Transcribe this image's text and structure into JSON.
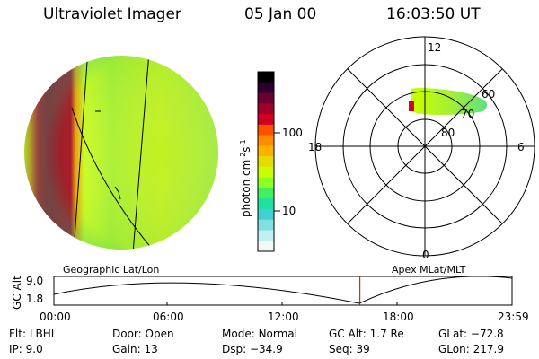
{
  "header": {
    "instrument": "Ultraviolet Imager",
    "date": "05 Jan 00",
    "time": "16:03:50 UT"
  },
  "colorbar": {
    "unit_prefix": "photon cm",
    "unit_exp1": "-2",
    "unit_mid": "s",
    "unit_exp2": "-1",
    "tick_100": "100",
    "tick_10": "10",
    "colors": [
      "#000000",
      "#2a0030",
      "#6a0030",
      "#a0002a",
      "#d00020",
      "#ff5000",
      "#ff8c00",
      "#ffb000",
      "#e6dc00",
      "#c8ff00",
      "#8cff20",
      "#40f060",
      "#20e0a0",
      "#40d0d0",
      "#80e0e0",
      "#c0f0f0",
      "#f0f8f8"
    ]
  },
  "polar": {
    "mlt_12": "12",
    "mlt_18": "18",
    "mlt_6": "6",
    "mlt_0": "0",
    "lat_60": "60",
    "lat_70": "70",
    "lat_80": "80"
  },
  "labels": {
    "left_title": "Geographic Lat/Lon",
    "right_title": "Apex MLat/MLT"
  },
  "timeline": {
    "axis_label": "GC Alt",
    "y_top": "9.0",
    "y_bottom": "1.8",
    "ticks": [
      "00:00",
      "06:00",
      "12:00",
      "18:00",
      "23:59"
    ],
    "current_time_fraction": 0.668
  },
  "status": {
    "flt_label": "Flt:",
    "flt_value": "LBHL",
    "ip_label": "IP:",
    "ip_value": "9.0",
    "door_label": "Door:",
    "door_value": "Open",
    "gain_label": "Gain:",
    "gain_value": "13",
    "mode_label": "Mode:",
    "mode_value": "Normal",
    "dsp_label": "Dsp:",
    "dsp_value": "−34.9",
    "gcalt_label": "GC Alt:",
    "gcalt_value": "1.7 Re",
    "seq_label": "Seq:",
    "seq_value": "39",
    "glat_label": "GLat:",
    "glat_value": "−72.8",
    "glon_label": "GLon:",
    "glon_value": "217.9"
  }
}
